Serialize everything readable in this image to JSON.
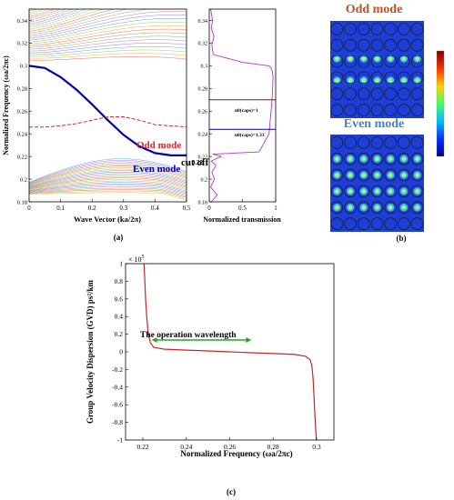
{
  "panel_labels": {
    "a": "(a)",
    "b": "(b)",
    "c": "(c)"
  },
  "chart_data": [
    {
      "type": "line",
      "panel": "(a) left",
      "xlabel": "Wave Vector  (ka/2π)",
      "ylabel": "Normalized Frequency (ωa/2πc)",
      "xlim": [
        0,
        0.5
      ],
      "ylim": [
        0.18,
        0.35
      ],
      "x_ticks": [
        "0",
        "0.1",
        "0.2",
        "0.3",
        "0.4",
        "0.5"
      ],
      "y_ticks": [
        "0.18",
        "0.2",
        "0.22",
        "0.24",
        "0.26",
        "0.28",
        "0.3",
        "0.32",
        "0.34"
      ],
      "series": [
        {
          "name": "Even mode",
          "color": "#0000a8",
          "x": [
            0,
            0.05,
            0.1,
            0.15,
            0.2,
            0.25,
            0.3,
            0.35,
            0.4,
            0.45,
            0.5
          ],
          "y": [
            0.3,
            0.298,
            0.29,
            0.279,
            0.266,
            0.252,
            0.239,
            0.229,
            0.223,
            0.221,
            0.221
          ]
        },
        {
          "name": "Odd mode",
          "color": "#d62728",
          "x": [
            0,
            0.05,
            0.1,
            0.15,
            0.2,
            0.25,
            0.3,
            0.35,
            0.4,
            0.45,
            0.5
          ],
          "y": [
            0.246,
            0.246,
            0.247,
            0.249,
            0.252,
            0.255,
            0.255,
            0.252,
            0.248,
            0.247,
            0.246
          ]
        }
      ],
      "annotations": [
        "Odd mode",
        "Even mode",
        "cut off",
        "→ 0.22"
      ]
    },
    {
      "type": "line",
      "panel": "(a) right",
      "xlabel": "Normalized transmission",
      "xlim": [
        0,
        1
      ],
      "ylim": [
        0.18,
        0.35
      ],
      "x_ticks": [
        "0",
        "0.5",
        "1"
      ],
      "y_ticks": [
        "0.18",
        "0.2",
        "0.22",
        "0.24",
        "0.26",
        "0.28",
        "0.3",
        "0.32",
        "0.34"
      ],
      "series": [
        {
          "name": "transmission",
          "color": "#bb33cc",
          "x": [
            0.03,
            0.12,
            0.02,
            0.08,
            0.04,
            0.1,
            0.03,
            0.18,
            0.05,
            0.75,
            0.9,
            0.93,
            0.95,
            0.96,
            0.95,
            0.93,
            0.9,
            0.5,
            0.06,
            0.04,
            0.07,
            0.03,
            0.05,
            0.02
          ],
          "y": [
            0.18,
            0.186,
            0.193,
            0.2,
            0.206,
            0.212,
            0.216,
            0.22,
            0.222,
            0.224,
            0.24,
            0.26,
            0.275,
            0.29,
            0.295,
            0.298,
            0.3,
            0.303,
            0.31,
            0.318,
            0.326,
            0.333,
            0.34,
            0.35
          ]
        }
      ],
      "hlines": [
        {
          "label": "n0(caps)=1",
          "y": 0.27
        },
        {
          "label": "n0(caps)=1.33",
          "y": 0.244
        }
      ]
    },
    {
      "type": "line",
      "panel": "(c)",
      "title": "",
      "xlabel": "Normalized Frequency (ωa/2πc)",
      "ylabel": "Group Velocity Dispersion (GVD) ps²/km",
      "y_multiplier": "× 10",
      "y_multiplier_exp": "5",
      "xlim": [
        0.212,
        0.308
      ],
      "ylim": [
        -1,
        1
      ],
      "x_ticks": [
        "0.22",
        "0.24",
        "0.26",
        "0.28",
        "0.3"
      ],
      "y_ticks": [
        "1",
        "0.8",
        "0.6",
        "0.4",
        "0.2",
        "0",
        "-0.2",
        "-0.4",
        "-0.6",
        "-0.8",
        "-1"
      ],
      "annotation": "The operation wavelength",
      "operation_range": [
        0.224,
        0.27
      ],
      "series": [
        {
          "name": "GVD",
          "color": "#c0282c",
          "x": [
            0.2205,
            0.2208,
            0.2212,
            0.2218,
            0.2225,
            0.2235,
            0.225,
            0.23,
            0.24,
            0.25,
            0.26,
            0.27,
            0.28,
            0.29,
            0.295,
            0.297,
            0.2978,
            0.2984,
            0.2988,
            0.2992,
            0.2996,
            0.2999
          ],
          "y": [
            1.0,
            0.85,
            0.62,
            0.38,
            0.2,
            0.1,
            0.05,
            0.03,
            0.02,
            0.01,
            0.0,
            -0.01,
            -0.02,
            -0.03,
            -0.05,
            -0.09,
            -0.15,
            -0.3,
            -0.5,
            -0.7,
            -0.88,
            -1.0
          ]
        }
      ]
    }
  ],
  "mode_panel": {
    "odd_title": "Odd mode",
    "even_title": "Even mode",
    "odd_title_color": "#b5532a",
    "even_title_color": "#4a7fc4",
    "background_color": "#1e3ed8",
    "colorbar": [
      "#7f0000",
      "#ff3000",
      "#ffd000",
      "#40ff60",
      "#00c0ff",
      "#0030ff",
      "#00008f"
    ]
  }
}
